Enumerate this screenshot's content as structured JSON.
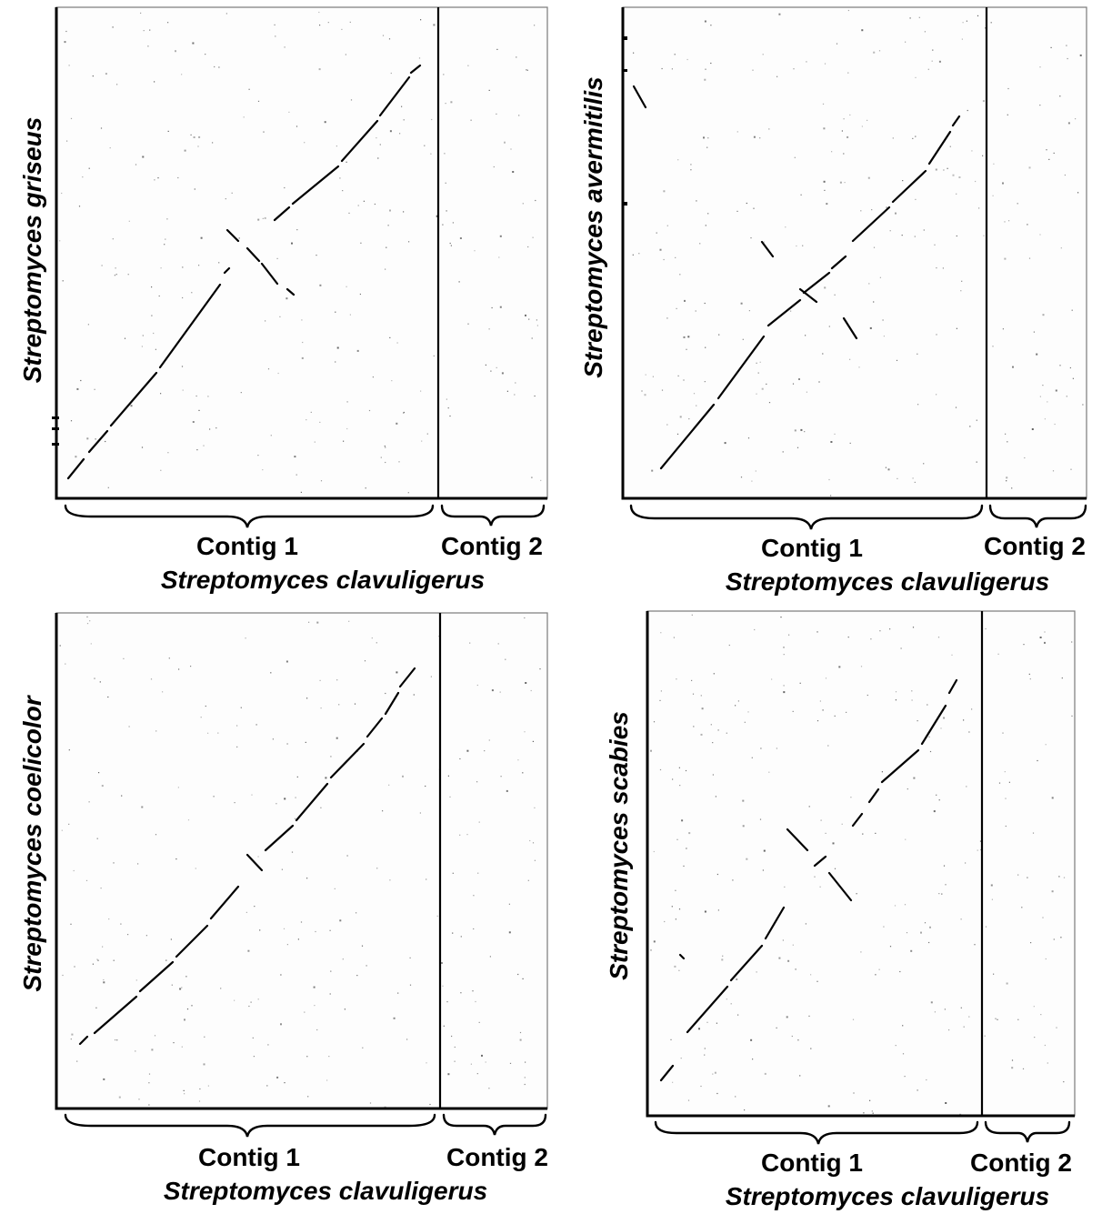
{
  "panels": [
    {
      "id": "griseus",
      "y_species": "Streptomyces griseus",
      "x_species": "Streptomyces clavuligerus",
      "contig1_label": "Contig 1",
      "contig2_label": "Contig 2"
    },
    {
      "id": "avermitilis",
      "y_species": "Streptomyces avermitilis",
      "x_species": "Streptomyces clavuligerus",
      "contig1_label": "Contig 1",
      "contig2_label": "Contig 2"
    },
    {
      "id": "coelicolor",
      "y_species": "Streptomyces coelicolor",
      "x_species": "Streptomyces clavuligerus",
      "contig1_label": "Contig 1",
      "contig2_label": "Contig 2"
    },
    {
      "id": "scabies",
      "y_species": "Streptomyces scabies",
      "x_species": "Streptomyces clavuligerus",
      "contig1_label": "Contig 1",
      "contig2_label": "Contig 2"
    }
  ]
}
